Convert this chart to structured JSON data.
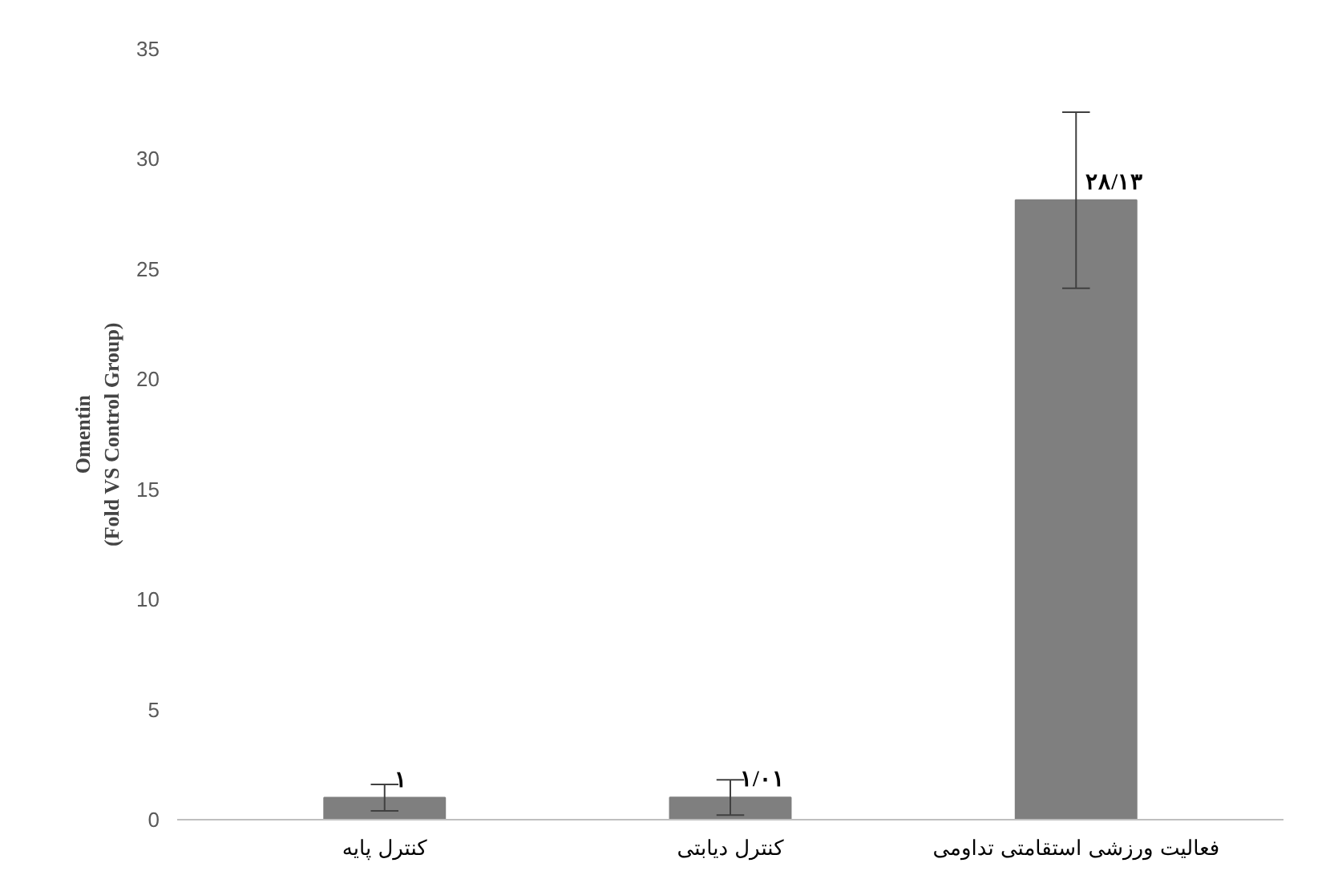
{
  "chart_data": {
    "type": "bar",
    "categories": [
      "کنترل پایه",
      "کنترل دیابتی",
      "فعالیت ورزشی استقامتی تداومی"
    ],
    "values": [
      1,
      1.01,
      28.13
    ],
    "value_labels": [
      "۱",
      "۱/۰۱",
      "۲۸/۱۳"
    ],
    "errors": [
      0.6,
      0.8,
      4
    ],
    "color": "#7f7f7f",
    "ylabel": "Omentin\n(Fold VS Control Group)",
    "ylim": [
      0,
      35
    ],
    "yticks": [
      0,
      5,
      10,
      15,
      20,
      25,
      30,
      35
    ],
    "grid": false
  }
}
